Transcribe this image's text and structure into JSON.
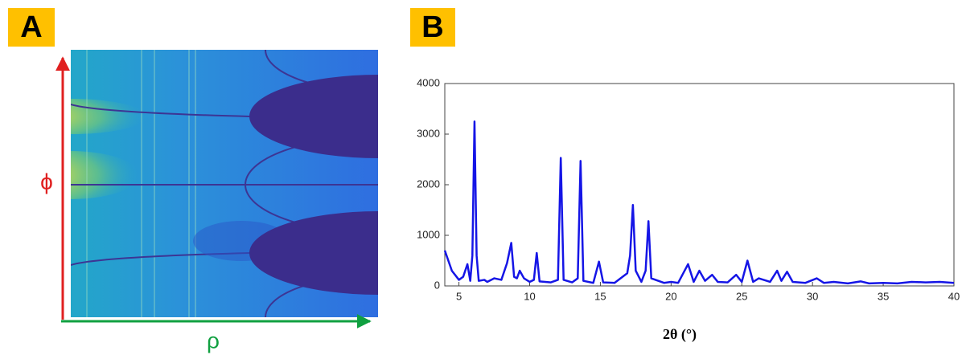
{
  "panel_a": {
    "label": "A",
    "y_label": "ϕ",
    "x_label": "ρ"
  },
  "panel_b": {
    "label": "B"
  },
  "chart_data": {
    "type": "line",
    "xlabel": "2θ (°)",
    "x": [
      4.0,
      4.5,
      5.0,
      5.3,
      5.6,
      5.8,
      5.95,
      6.1,
      6.25,
      6.4,
      6.8,
      7.0,
      7.5,
      8.0,
      8.4,
      8.7,
      8.9,
      9.1,
      9.3,
      9.6,
      10.0,
      10.3,
      10.5,
      10.7,
      11.5,
      12.0,
      12.2,
      12.4,
      13.0,
      13.4,
      13.6,
      13.8,
      14.5,
      14.9,
      15.2,
      16.0,
      16.9,
      17.1,
      17.3,
      17.5,
      17.9,
      18.2,
      18.4,
      18.6,
      19.5,
      20.0,
      20.5,
      21.2,
      21.6,
      22.0,
      22.4,
      22.9,
      23.3,
      24.0,
      24.6,
      25.0,
      25.4,
      25.8,
      26.2,
      27.0,
      27.5,
      27.8,
      28.2,
      28.6,
      29.5,
      30.3,
      30.8,
      31.5,
      32.5,
      33.4,
      34.0,
      35.0,
      36.0,
      37.0,
      38.0,
      39.0,
      40.0
    ],
    "series": [
      {
        "color": "#1515e6",
        "values": [
          700,
          300,
          120,
          180,
          430,
          100,
          600,
          3250,
          600,
          100,
          120,
          80,
          150,
          120,
          450,
          850,
          180,
          150,
          300,
          150,
          80,
          120,
          650,
          90,
          70,
          120,
          2530,
          120,
          70,
          150,
          2470,
          100,
          60,
          480,
          70,
          60,
          250,
          600,
          1600,
          300,
          80,
          300,
          1280,
          150,
          60,
          80,
          60,
          430,
          80,
          300,
          100,
          220,
          80,
          70,
          220,
          80,
          500,
          80,
          150,
          80,
          300,
          100,
          280,
          80,
          60,
          150,
          60,
          80,
          50,
          90,
          50,
          60,
          50,
          80,
          70,
          80,
          60
        ]
      }
    ],
    "xlim": [
      4,
      40
    ],
    "ylim": [
      0,
      4000
    ],
    "xticks": [
      5,
      10,
      15,
      20,
      25,
      30,
      35,
      40
    ],
    "yticks": [
      0,
      1000,
      2000,
      3000,
      4000
    ]
  }
}
